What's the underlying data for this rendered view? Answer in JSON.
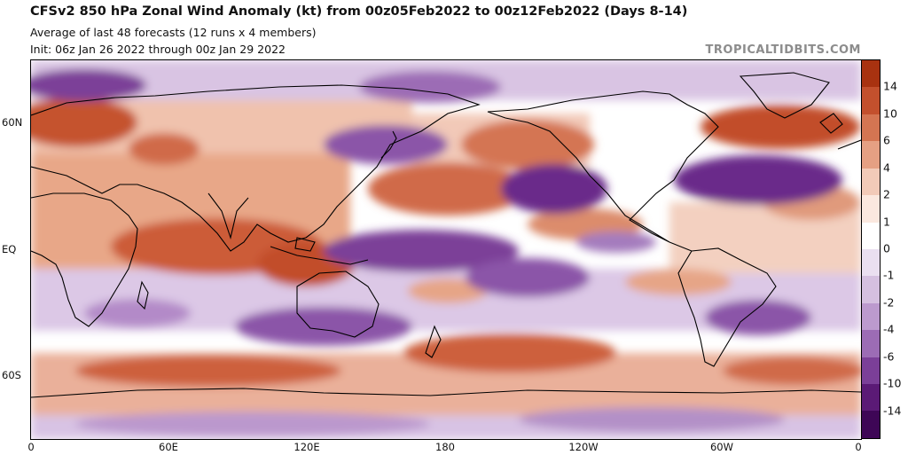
{
  "title": "CFSv2 850 hPa Zonal Wind Anomaly (kt) from 00z05Feb2022 to 00z12Feb2022 (Days 8-14)",
  "subtitle_1": "Average of last 48 forecasts (12 runs x 4 members)",
  "subtitle_2": "Init: 06z Jan 26 2022 through 00z Jan 29 2022",
  "watermark": "TROPICALTIDBITS.COM",
  "lat_labels": [
    "60N",
    "EQ",
    "60S"
  ],
  "lon_labels": [
    "0",
    "60E",
    "120E",
    "180",
    "120W",
    "60W",
    "0"
  ],
  "colorbar": {
    "labels": [
      "14",
      "10",
      "6",
      "4",
      "2",
      "1",
      "0",
      "-1",
      "-2",
      "-4",
      "-6",
      "-10",
      "-14"
    ],
    "colors": [
      "#a83210",
      "#c3502d",
      "#d47552",
      "#e5a083",
      "#f2cab8",
      "#fbe8df",
      "#ffffff",
      "#eadff0",
      "#d5c0e0",
      "#bc9ace",
      "#9c6cb5",
      "#7b3f98",
      "#5b1a76",
      "#3e0656"
    ]
  },
  "colors": {
    "positive_strong": "#c5532f",
    "positive_weak": "#eeb49c",
    "negative_strong": "#7a3f97",
    "negative_weak": "#c7a6d6",
    "land_outline": "#000000"
  }
}
